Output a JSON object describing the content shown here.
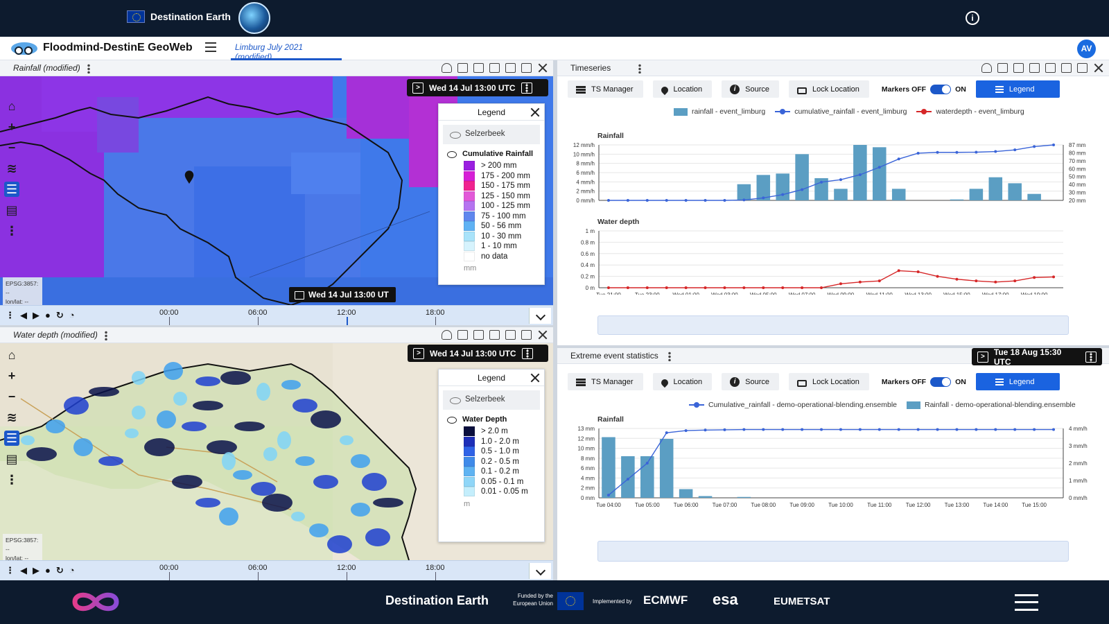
{
  "topbar": {
    "brand": "Destination Earth"
  },
  "app": {
    "title": "Floodmind-DestinE GeoWeb",
    "workspace_tab": "Limburg July 2021 (modified)",
    "avatar": "AV"
  },
  "rainfall_panel": {
    "title": "Rainfall (modified)",
    "time_chip": "Wed 14 Jul 13:00 UTC",
    "current_time": "Wed 14 Jul 13:00 UT",
    "projection": "EPSG:3857: --",
    "lonlat": "lon/lat: --",
    "legend": {
      "title": "Legend",
      "hidden_layer": "Selzerbeek",
      "layer": "Cumulative Rainfall",
      "unit": "mm",
      "classes": [
        {
          "label": "> 200 mm",
          "color": "#9a1fe0"
        },
        {
          "label": "175 - 200 mm",
          "color": "#d61fd6"
        },
        {
          "label": "150 - 175 mm",
          "color": "#f0238f"
        },
        {
          "label": "125 - 150 mm",
          "color": "#e259d8"
        },
        {
          "label": "100 - 125 mm",
          "color": "#b574f0"
        },
        {
          "label": "75 - 100 mm",
          "color": "#5f87ee"
        },
        {
          "label": "50 - 56 mm",
          "color": "#5fb2f4"
        },
        {
          "label": "10 - 30 mm",
          "color": "#a9e3fa"
        },
        {
          "label": "1 - 10 mm",
          "color": "#d6f3fd"
        },
        {
          "label": "no data",
          "color": "#ffffff"
        }
      ]
    },
    "timeline": [
      "00:00",
      "06:00",
      "12:00",
      "18:00"
    ]
  },
  "waterdepth_panel": {
    "title": "Water depth (modified)",
    "time_chip": "Wed 14 Jul 13:00 UTC",
    "projection": "EPSG:3857: --",
    "lonlat": "lon/lat: --",
    "legend": {
      "title": "Legend",
      "hidden_layer": "Selzerbeek",
      "layer": "Water Depth",
      "unit": "m",
      "classes": [
        {
          "label": "> 2.0 m",
          "color": "#0a0f3d"
        },
        {
          "label": "1.0 - 2.0 m",
          "color": "#1e2fb8"
        },
        {
          "label": "0.5 - 1.0 m",
          "color": "#2f62e6"
        },
        {
          "label": "0.2 - 0.5 m",
          "color": "#3f8ae9"
        },
        {
          "label": "0.1 - 0.2 m",
          "color": "#5fb3f2"
        },
        {
          "label": "0.05 - 0.1 m",
          "color": "#8fd6f8"
        },
        {
          "label": "0.01 - 0.05 m",
          "color": "#c4eefc"
        }
      ]
    },
    "timeline": [
      "00:00",
      "06:00",
      "12:00",
      "18:00"
    ]
  },
  "timeseries_panel": {
    "title": "Timeseries",
    "toolbar": {
      "ts_manager": "TS Manager",
      "location": "Location",
      "source": "Source",
      "lock_location": "Lock Location",
      "markers_off": "Markers OFF",
      "markers_on": "ON",
      "legend": "Legend"
    },
    "legend_items": [
      {
        "label": "rainfall - event_limburg",
        "color": "#5b9ec3"
      },
      {
        "label": "cumulative_rainfall - event_limburg",
        "color": "#3a64d8"
      },
      {
        "label": "waterdepth - event_limburg",
        "color": "#d62728"
      }
    ]
  },
  "extreme_panel": {
    "title": "Extreme event statistics",
    "time_chip": "Tue 18 Aug 15:30 UTC",
    "toolbar": {
      "ts_manager": "TS Manager",
      "location": "Location",
      "source": "Source",
      "lock_location": "Lock Location",
      "markers_off": "Markers OFF",
      "markers_on": "ON",
      "legend": "Legend"
    },
    "legend_items": [
      {
        "label": "Cumulative_rainfall - demo-operational-blending.ensemble",
        "color": "#3a64d8"
      },
      {
        "label": "Rainfall - demo-operational-blending.ensemble",
        "color": "#5b9ec3"
      }
    ]
  },
  "chart_data": [
    {
      "type": "bar",
      "title": "Rainfall",
      "categories": [
        "Tue 21:00",
        "Tue 22:00",
        "Tue 23:00",
        "Wed 00:00",
        "Wed 01:00",
        "Wed 02:00",
        "Wed 03:00",
        "Wed 04:00",
        "Wed 05:00",
        "Wed 06:00",
        "Wed 07:00",
        "Wed 08:00",
        "Wed 09:00",
        "Wed 10:00",
        "Wed 11:00",
        "Wed 12:00",
        "Wed 13:00",
        "Wed 14:00",
        "Wed 15:00",
        "Wed 16:00",
        "Wed 17:00",
        "Wed 18:00",
        "Wed 19:00",
        "Wed 20:00"
      ],
      "tick_labels": [
        "Tue 21:00",
        "Tue 23:00",
        "Wed 01:00",
        "Wed 03:00",
        "Wed 05:00",
        "Wed 07:00",
        "Wed 09:00",
        "Wed 11:00",
        "Wed 13:00",
        "Wed 15:00",
        "Wed 17:00",
        "Wed 19:00"
      ],
      "y_left_ticks": [
        "0 mm/h",
        "2 mm/h",
        "4 mm/h",
        "6 mm/h",
        "8 mm/h",
        "10 mm/h",
        "12 mm/h"
      ],
      "y_right_ticks": [
        "20 mm",
        "30 mm",
        "40 mm",
        "50 mm",
        "60 mm",
        "70 mm",
        "80 mm",
        "87 mm"
      ],
      "ylim_left": [
        0,
        12
      ],
      "ylim_right": [
        20,
        87
      ],
      "series": [
        {
          "name": "rainfall - event_limburg",
          "values": [
            0,
            0,
            0,
            0,
            0,
            0,
            0,
            3.5,
            5.5,
            5.8,
            10,
            4.8,
            2.5,
            12,
            11.5,
            2.5,
            0,
            0,
            0.2,
            2.5,
            5,
            3.7,
            1.4,
            0
          ],
          "color": "#5b9ec3",
          "kind": "bar"
        },
        {
          "name": "cumulative_rainfall - event_limburg",
          "values": [
            20,
            20,
            20,
            20,
            20,
            20,
            20,
            20.5,
            23,
            27,
            33,
            42,
            45,
            51,
            60,
            70,
            77,
            78,
            78,
            78.2,
            79,
            81,
            85,
            87
          ],
          "color": "#3a64d8",
          "kind": "line"
        }
      ]
    },
    {
      "type": "line",
      "title": "Water depth",
      "categories": [
        "Tue 21:00",
        "Tue 22:00",
        "Tue 23:00",
        "Wed 00:00",
        "Wed 01:00",
        "Wed 02:00",
        "Wed 03:00",
        "Wed 04:00",
        "Wed 05:00",
        "Wed 06:00",
        "Wed 07:00",
        "Wed 08:00",
        "Wed 09:00",
        "Wed 10:00",
        "Wed 11:00",
        "Wed 12:00",
        "Wed 13:00",
        "Wed 14:00",
        "Wed 15:00",
        "Wed 16:00",
        "Wed 17:00",
        "Wed 18:00",
        "Wed 19:00",
        "Wed 20:00"
      ],
      "tick_labels": [
        "Tue 21:00",
        "Tue 23:00",
        "Wed 01:00",
        "Wed 03:00",
        "Wed 05:00",
        "Wed 07:00",
        "Wed 09:00",
        "Wed 11:00",
        "Wed 13:00",
        "Wed 15:00",
        "Wed 17:00",
        "Wed 19:00"
      ],
      "y_ticks": [
        "0 m",
        "0.2 m",
        "0.4 m",
        "0.6 m",
        "0.8 m",
        "1 m"
      ],
      "ylim": [
        0,
        1
      ],
      "series": [
        {
          "name": "waterdepth - event_limburg",
          "values": [
            0,
            0,
            0,
            0,
            0,
            0,
            0,
            0,
            0,
            0,
            0,
            0,
            0.07,
            0.1,
            0.12,
            0.3,
            0.28,
            0.2,
            0.15,
            0.12,
            0.1,
            0.12,
            0.18,
            0.19
          ],
          "color": "#d62728"
        }
      ]
    },
    {
      "type": "bar",
      "title": "Rainfall",
      "categories": [
        "Tue 04:00",
        "Tue 04:30",
        "Tue 05:00",
        "Tue 05:30",
        "Tue 06:00",
        "Tue 06:30",
        "Tue 07:00",
        "Tue 07:30",
        "Tue 08:00",
        "Tue 08:30",
        "Tue 09:00",
        "Tue 09:30",
        "Tue 10:00",
        "Tue 10:30",
        "Tue 11:00",
        "Tue 11:30",
        "Tue 12:00",
        "Tue 12:30",
        "Tue 13:00",
        "Tue 13:30",
        "Tue 14:00",
        "Tue 14:30",
        "Tue 15:00",
        "Tue 15:30"
      ],
      "tick_labels": [
        "Tue 04:00",
        "Tue 05:00",
        "Tue 06:00",
        "Tue 07:00",
        "Tue 08:00",
        "Tue 09:00",
        "Tue 10:00",
        "Tue 11:00",
        "Tue 12:00",
        "Tue 13:00",
        "Tue 14:00",
        "Tue 15:00"
      ],
      "y_left_ticks": [
        "0 mm",
        "2 mm",
        "4 mm",
        "6 mm",
        "8 mm",
        "10 mm",
        "12 mm",
        "13 mm"
      ],
      "y_right_ticks": [
        "0 mm/h",
        "1 mm/h",
        "2 mm/h",
        "3 mm/h",
        "4 mm/h"
      ],
      "ylim_left": [
        0,
        13
      ],
      "ylim_right": [
        0,
        4
      ],
      "series": [
        {
          "name": "Rainfall - demo-operational-blending.ensemble",
          "values": [
            3.5,
            2.4,
            2.4,
            3.4,
            0.5,
            0.1,
            0,
            0.05,
            0,
            0,
            0,
            0,
            0,
            0,
            0,
            0,
            0,
            0,
            0,
            0,
            0,
            0,
            0,
            0
          ],
          "color": "#5b9ec3",
          "kind": "bar",
          "axis": "right"
        },
        {
          "name": "Cumulative_rainfall - demo-operational-blending.ensemble",
          "values": [
            0.5,
            3.5,
            6.5,
            12.2,
            12.6,
            12.7,
            12.75,
            12.8,
            12.8,
            12.8,
            12.8,
            12.8,
            12.8,
            12.8,
            12.8,
            12.8,
            12.8,
            12.8,
            12.8,
            12.8,
            12.8,
            12.8,
            12.8,
            12.8
          ],
          "color": "#3a64d8",
          "kind": "line",
          "axis": "left"
        }
      ]
    }
  ],
  "footer": {
    "title": "Destination Earth",
    "funded": "Funded by the European Union",
    "implemented": "Implemented by",
    "partners": [
      "ECMWF",
      "esa",
      "EUMETSAT"
    ]
  }
}
